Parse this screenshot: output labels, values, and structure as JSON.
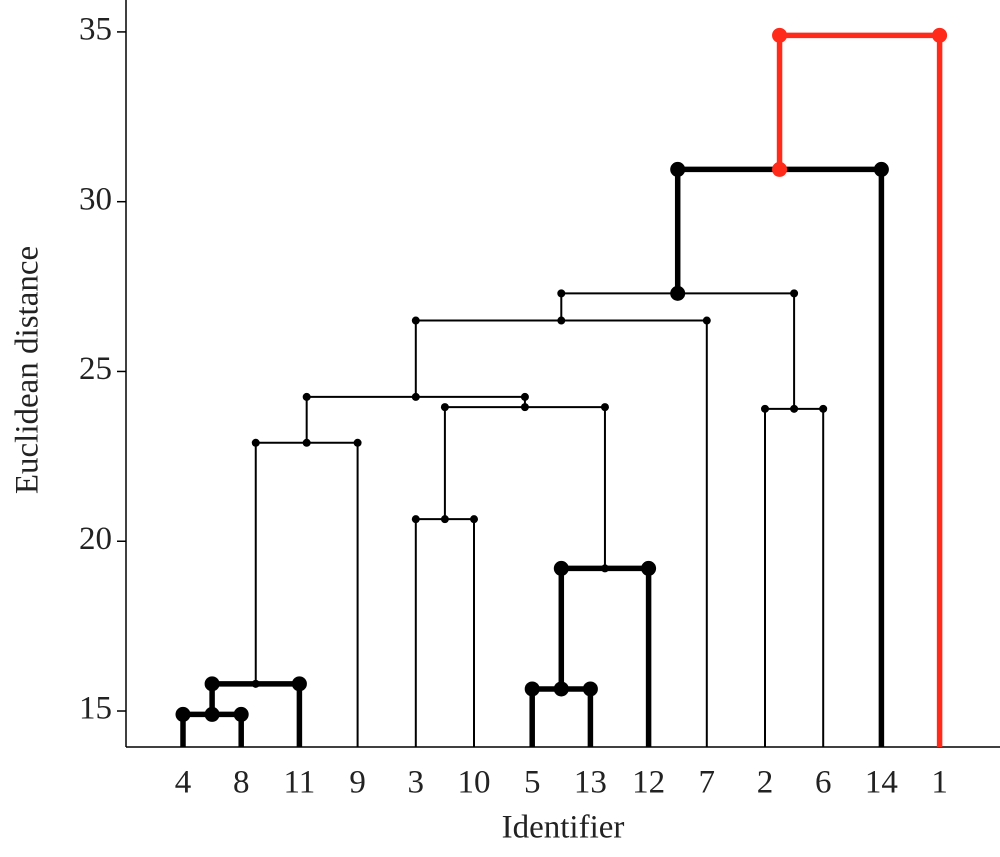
{
  "chart_data": {
    "type": "dendrogram",
    "x_label": "Identifier",
    "y_label": "Euclidean distance",
    "ylim": [
      13.94,
      35.94
    ],
    "yticks": [
      15,
      20,
      25,
      30,
      35
    ],
    "color": "#000000",
    "tree": {
      "height": 34.9,
      "color": "#ff2a1a",
      "bold": true,
      "children": [
        {
          "height": 30.95,
          "bold": true,
          "children": [
            {
              "height": 27.3,
              "children": [
                {
                  "height": 26.5,
                  "children": [
                    {
                      "height": 24.25,
                      "children": [
                        {
                          "height": 22.9,
                          "children": [
                            {
                              "height": 15.8,
                              "bold": true,
                              "children": [
                                {
                                  "height": 14.9,
                                  "bold": true,
                                  "children": [
                                    {
                                      "label": "4"
                                    },
                                    {
                                      "label": "8"
                                    }
                                  ]
                                },
                                {
                                  "label": "11"
                                }
                              ]
                            },
                            {
                              "label": "9"
                            }
                          ]
                        },
                        {
                          "height": 23.95,
                          "children": [
                            {
                              "height": 20.65,
                              "children": [
                                {
                                  "label": "3"
                                },
                                {
                                  "label": "10"
                                }
                              ]
                            },
                            {
                              "height": 19.2,
                              "bold": true,
                              "children": [
                                {
                                  "height": 15.65,
                                  "bold": true,
                                  "children": [
                                    {
                                      "label": "5"
                                    },
                                    {
                                      "label": "13"
                                    }
                                  ]
                                },
                                {
                                  "label": "12"
                                }
                              ]
                            }
                          ]
                        }
                      ]
                    },
                    {
                      "label": "7"
                    }
                  ]
                },
                {
                  "height": 23.9,
                  "children": [
                    {
                      "label": "2"
                    },
                    {
                      "label": "6"
                    }
                  ]
                }
              ]
            },
            {
              "label": "14"
            }
          ]
        },
        {
          "label": "1"
        }
      ]
    }
  }
}
